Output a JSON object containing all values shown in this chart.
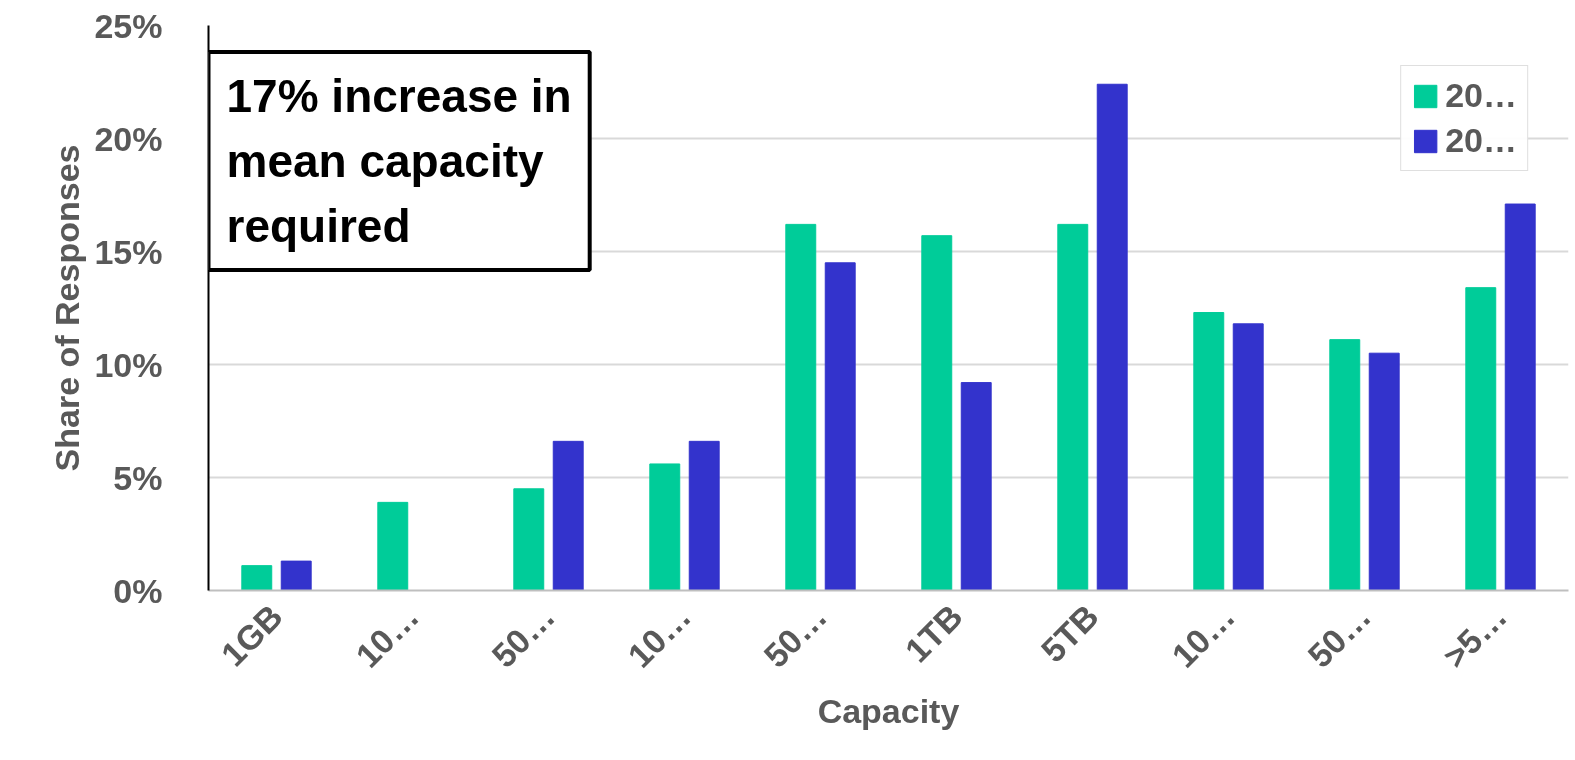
{
  "chart_data": {
    "type": "bar",
    "xlabel": "Capacity",
    "ylabel": "Share of Responses",
    "categories": [
      "1GB",
      "10…",
      "50…",
      "10…",
      "50…",
      "1TB",
      "5TB",
      "10…",
      "50…",
      ">5…"
    ],
    "series": [
      {
        "name": "20…",
        "color": "#00cc99",
        "values": [
          1.1,
          3.9,
          4.5,
          5.6,
          16.2,
          15.7,
          16.2,
          12.3,
          11.1,
          13.4
        ]
      },
      {
        "name": "20…",
        "color": "#3333cc",
        "values": [
          1.3,
          0,
          6.6,
          6.6,
          14.5,
          9.2,
          22.4,
          11.8,
          10.5,
          17.1
        ]
      }
    ],
    "ylim": [
      0,
      25
    ],
    "yticks": [
      {
        "value": 0,
        "label": "0%"
      },
      {
        "value": 5,
        "label": "5%"
      },
      {
        "value": 10,
        "label": "10%"
      },
      {
        "value": 15,
        "label": "15%"
      },
      {
        "value": 20,
        "label": "20%"
      },
      {
        "value": 25,
        "label": "25%"
      }
    ],
    "grid": "y",
    "legend": "top right",
    "annotations": [
      "17% increase in\nmean capacity\nrequired"
    ]
  }
}
